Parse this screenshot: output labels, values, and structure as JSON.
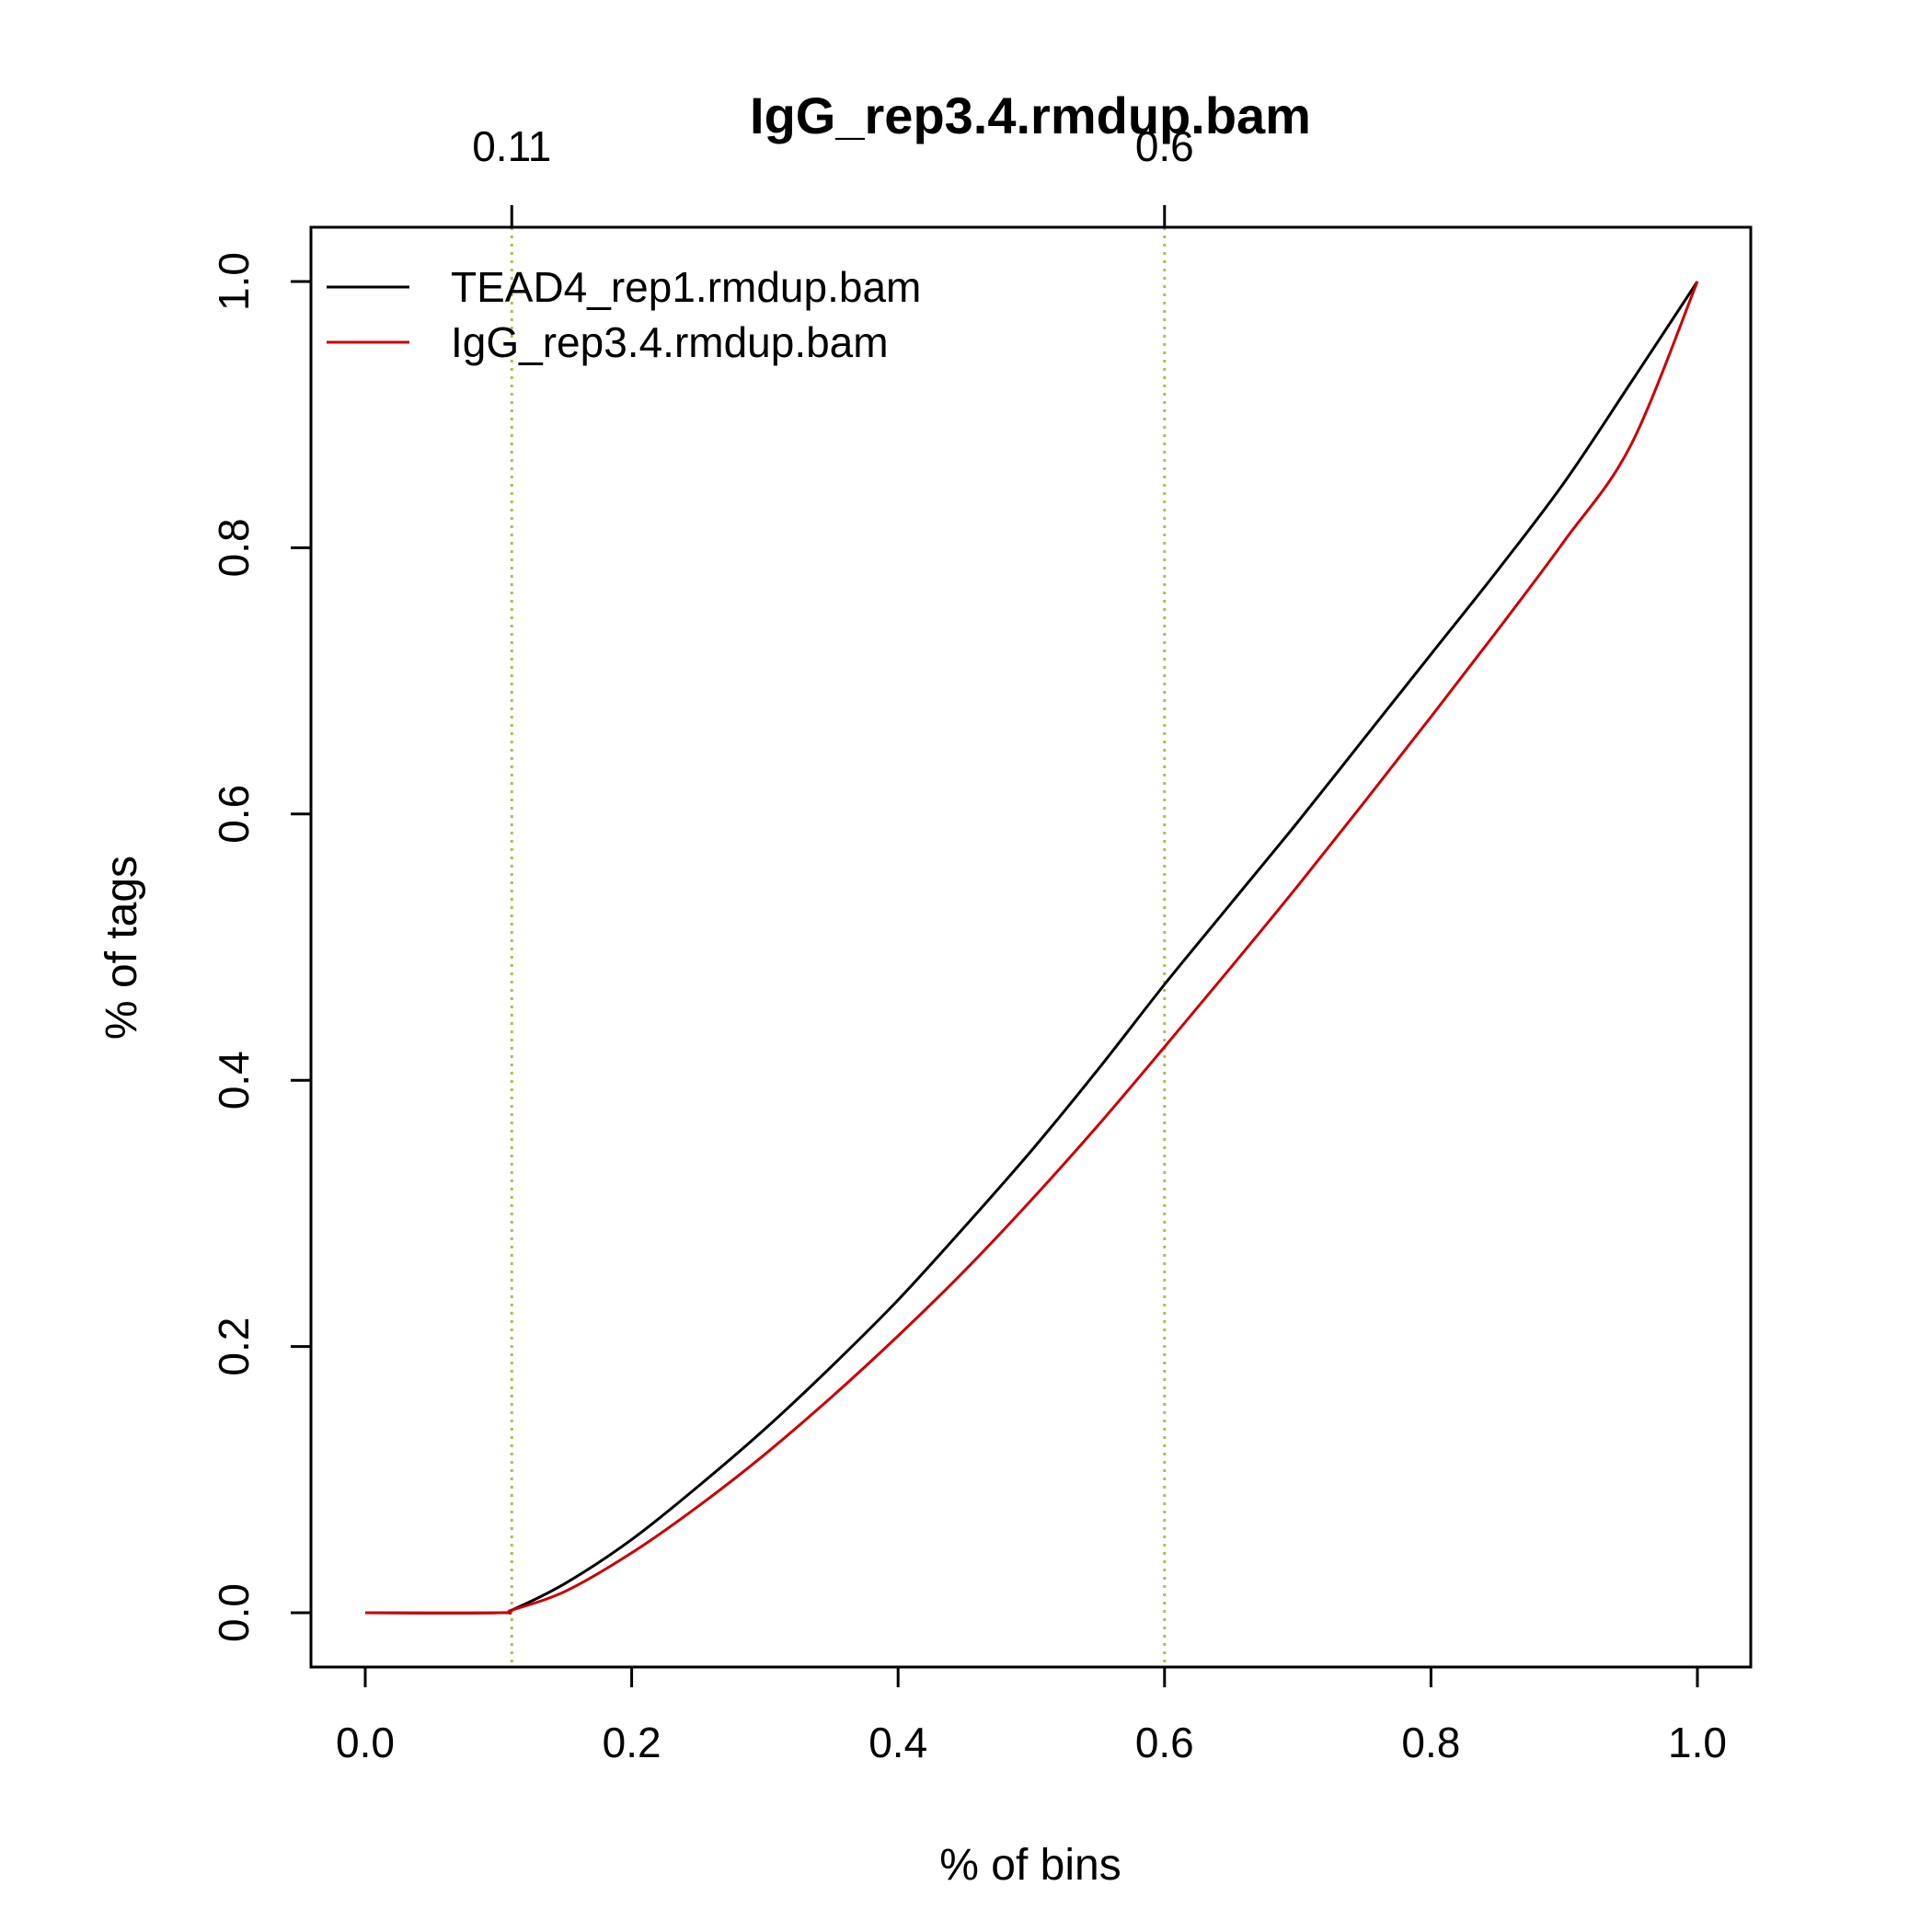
{
  "chart_data": {
    "type": "line",
    "title": "IgG_rep3.4.rmdup.bam",
    "xlabel": "% of bins",
    "ylabel": "% of tags",
    "xlim": [
      0.0,
      1.0
    ],
    "ylim": [
      0.0,
      1.0
    ],
    "x_ticks": [
      "0.0",
      "0.2",
      "0.4",
      "0.6",
      "0.8",
      "1.0"
    ],
    "y_ticks": [
      "0.0",
      "0.2",
      "0.4",
      "0.6",
      "0.8",
      "1.0"
    ],
    "top_markers": [
      {
        "value": 0.11,
        "label": "0.11"
      },
      {
        "value": 0.6,
        "label": "0.6"
      }
    ],
    "marker_line_color": "#b8b84a",
    "grid": false,
    "legend_position": "top-left",
    "series": [
      {
        "name": "TEAD4_rep1.rmdup.bam",
        "color": "#000000",
        "x": [
          0.0,
          0.1,
          0.11,
          0.15,
          0.2,
          0.25,
          0.3,
          0.35,
          0.4,
          0.45,
          0.5,
          0.55,
          0.6,
          0.65,
          0.7,
          0.75,
          0.8,
          0.85,
          0.9,
          0.95,
          1.0
        ],
        "y": [
          0.0,
          0.0,
          0.002,
          0.022,
          0.055,
          0.095,
          0.138,
          0.185,
          0.235,
          0.29,
          0.347,
          0.408,
          0.472,
          0.533,
          0.594,
          0.657,
          0.72,
          0.783,
          0.849,
          0.924,
          1.0
        ]
      },
      {
        "name": "IgG_rep3.4.rmdup.bam",
        "color": "#cc0000",
        "x": [
          0.0,
          0.1,
          0.11,
          0.15,
          0.2,
          0.25,
          0.3,
          0.35,
          0.4,
          0.45,
          0.5,
          0.55,
          0.6,
          0.65,
          0.7,
          0.75,
          0.8,
          0.85,
          0.9,
          0.95,
          1.0
        ],
        "y": [
          0.0,
          0.0,
          0.002,
          0.016,
          0.045,
          0.08,
          0.119,
          0.162,
          0.208,
          0.257,
          0.31,
          0.366,
          0.425,
          0.485,
          0.546,
          0.609,
          0.673,
          0.738,
          0.805,
          0.877,
          1.0
        ]
      }
    ]
  }
}
